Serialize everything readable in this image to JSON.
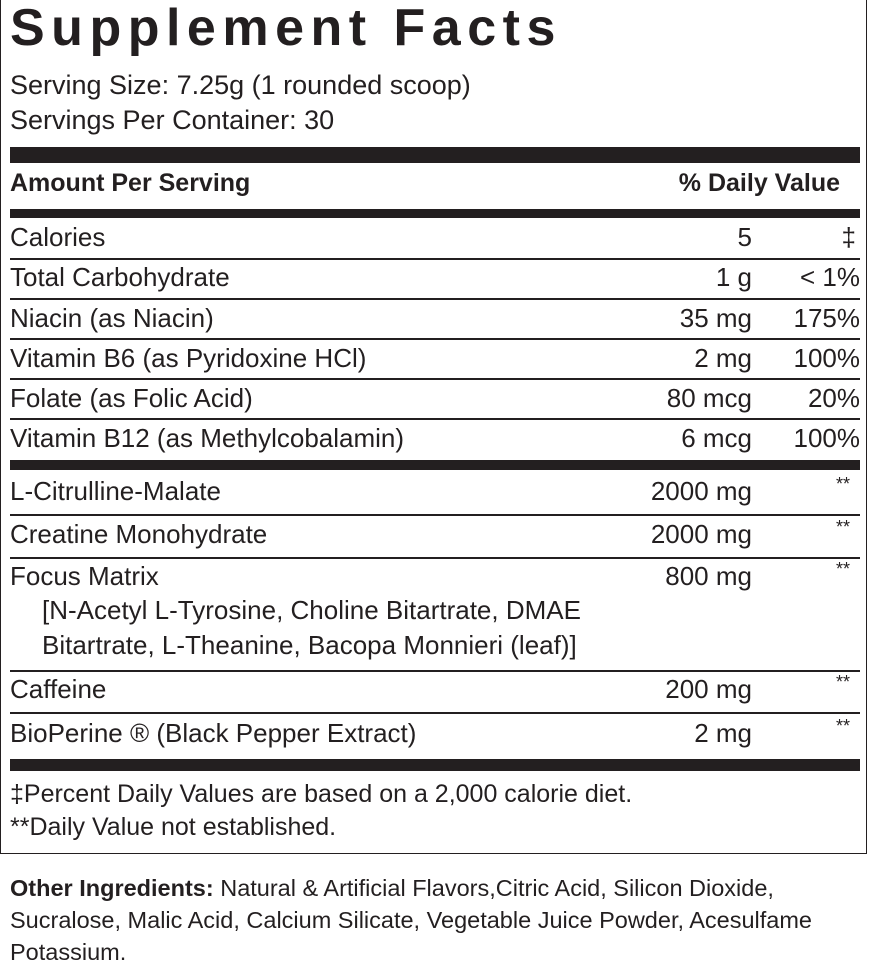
{
  "title": "Supplement Facts",
  "serving_size": "Serving Size: 7.25g (1 rounded scoop)",
  "servings_per_container": "Servings Per Container: 30",
  "header": {
    "amount": "Amount Per Serving",
    "daily_value": "% Daily Value"
  },
  "vitamins": [
    {
      "name": "Calories",
      "amount": "5",
      "dv": "‡"
    },
    {
      "name": "Total Carbohydrate",
      "amount": "1 g",
      "dv": "< 1%"
    },
    {
      "name": "Niacin (as Niacin)",
      "amount": "35 mg",
      "dv": "175%"
    },
    {
      "name": "Vitamin B6 (as Pyridoxine HCl)",
      "amount": "2 mg",
      "dv": "100%"
    },
    {
      "name": "Folate (as Folic Acid)",
      "amount": "80 mcg",
      "dv": "20%"
    },
    {
      "name": "Vitamin B12 (as Methylcobalamin)",
      "amount": "6 mcg",
      "dv": "100%"
    }
  ],
  "ingredients": [
    {
      "name": "L-Citrulline-Malate",
      "amount": "2000 mg",
      "dv": "**"
    },
    {
      "name": "Creatine Monohydrate",
      "amount": "2000 mg",
      "dv": "**"
    },
    {
      "name": "Focus Matrix",
      "amount": "800 mg",
      "dv": "**",
      "sub_line1": "[N-Acetyl L-Tyrosine, Choline Bitartrate, DMAE",
      "sub_line2": "Bitartrate, L-Theanine, Bacopa Monnieri (leaf)]"
    },
    {
      "name": "Caffeine",
      "amount": "200 mg",
      "dv": "**"
    },
    {
      "name": "BioPerine ® (Black Pepper Extract)",
      "amount": "2 mg",
      "dv": "**"
    }
  ],
  "footnotes": [
    "‡Percent Daily Values are based on a 2,000 calorie diet.",
    "**Daily Value not established."
  ],
  "other_ingredients": {
    "label": "Other Ingredients:",
    "text": " Natural & Artificial Flavors,Citric Acid, Silicon Dioxide, Sucralose, Malic Acid, Calcium Silicate, Vegetable Juice Powder, Acesulfame Potassium."
  }
}
